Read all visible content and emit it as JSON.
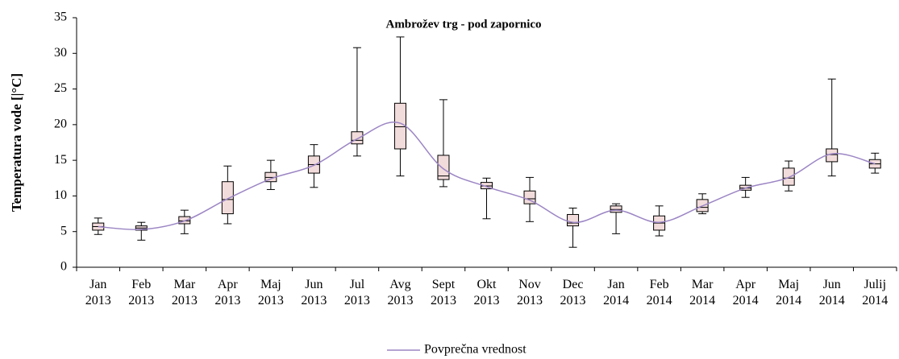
{
  "chart_data": {
    "type": "box",
    "title": "Ambrožev trg - pod zapornico",
    "y_label": "Temperatura vode [|°C]",
    "categories": [
      "Jan 2013",
      "Feb 2013",
      "Mar 2013",
      "Apr 2013",
      "Maj 2013",
      "Jun 2013",
      "Jul 2013",
      "Avg 2013",
      "Sept 2013",
      "Okt 2013",
      "Nov 2013",
      "Dec 2013",
      "Jan 2014",
      "Feb 2014",
      "Mar 2014",
      "Apr 2014",
      "Maj 2014",
      "Jun 2014",
      "Julij 2014"
    ],
    "boxes": {
      "min": [
        4.6,
        3.8,
        4.7,
        6.1,
        10.9,
        11.2,
        15.6,
        12.8,
        11.3,
        6.8,
        6.4,
        2.8,
        4.7,
        4.4,
        7.5,
        9.8,
        10.7,
        12.8,
        13.2
      ],
      "q1": [
        5.2,
        5.2,
        6.1,
        7.5,
        12.0,
        13.2,
        17.3,
        16.6,
        12.3,
        11.0,
        8.9,
        5.8,
        7.7,
        5.2,
        7.8,
        10.8,
        11.5,
        14.8,
        13.9
      ],
      "median": [
        5.7,
        5.5,
        6.5,
        9.5,
        12.6,
        14.4,
        17.8,
        19.7,
        12.8,
        11.4,
        9.6,
        6.2,
        8.1,
        6.2,
        8.4,
        11.1,
        12.5,
        15.8,
        14.5
      ],
      "q3": [
        6.2,
        5.8,
        7.1,
        12.0,
        13.3,
        15.6,
        19.0,
        23.0,
        15.7,
        11.9,
        10.7,
        7.4,
        8.6,
        7.2,
        9.5,
        11.5,
        13.9,
        16.6,
        15.1
      ],
      "max": [
        6.9,
        6.3,
        8.0,
        14.2,
        15.0,
        17.2,
        30.8,
        32.3,
        23.5,
        12.5,
        12.6,
        8.3,
        8.9,
        8.6,
        10.3,
        12.6,
        14.9,
        26.4,
        16.0
      ],
      "color": "#f2dcdb"
    },
    "mean": {
      "name": "Povprečna vrednost",
      "color": "#9b85c4",
      "values": [
        5.7,
        5.3,
        6.5,
        9.6,
        12.4,
        14.3,
        18.0,
        20.2,
        13.8,
        11.3,
        9.4,
        6.3,
        8.0,
        6.3,
        8.6,
        11.1,
        12.6,
        15.9,
        14.5
      ]
    },
    "ylim": [
      0,
      35
    ],
    "yticks": [
      0,
      5,
      10,
      15,
      20,
      25,
      30,
      35
    ],
    "grid": false,
    "legend": "bottom"
  }
}
